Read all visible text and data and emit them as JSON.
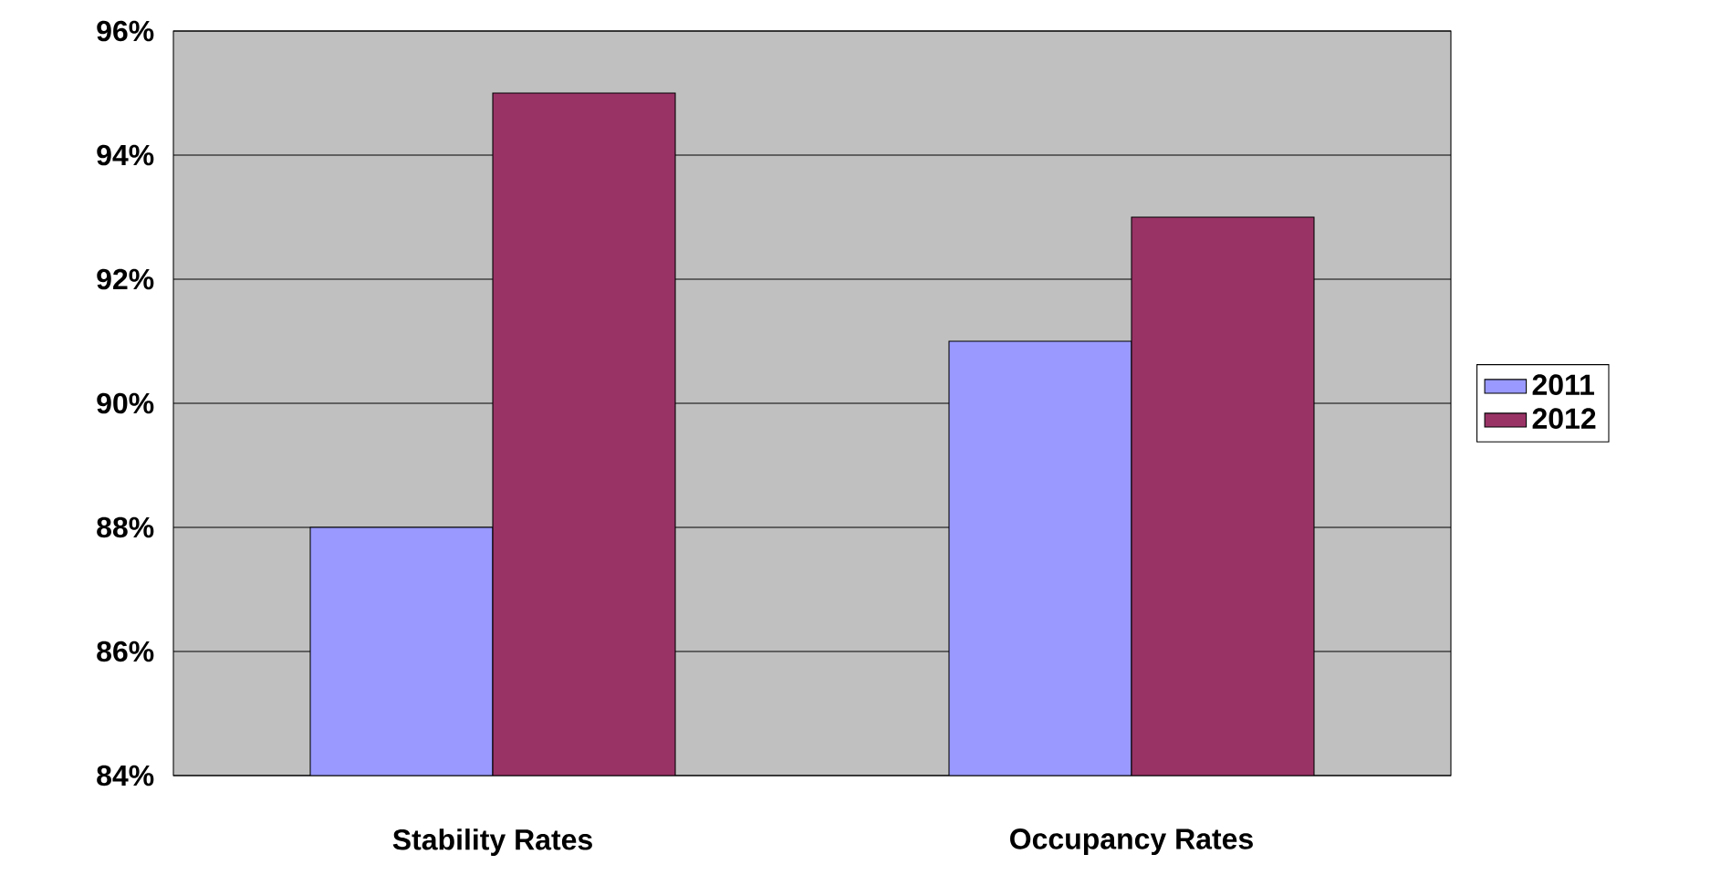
{
  "chart_data": {
    "type": "bar",
    "categories": [
      "Stability Rates",
      "Occupancy Rates"
    ],
    "series": [
      {
        "name": "2011",
        "color": "#9999ff",
        "values": [
          88,
          91
        ]
      },
      {
        "name": "2012",
        "color": "#993366",
        "values": [
          95,
          93
        ]
      }
    ],
    "ylim": [
      84,
      96
    ],
    "yticks": [
      {
        "value": 84,
        "label": "84%"
      },
      {
        "value": 86,
        "label": "86%"
      },
      {
        "value": 88,
        "label": "88%"
      },
      {
        "value": 90,
        "label": "90%"
      },
      {
        "value": 92,
        "label": "92%"
      },
      {
        "value": 94,
        "label": "94%"
      },
      {
        "value": 96,
        "label": "96%"
      }
    ],
    "grid": "y",
    "legend": "right"
  }
}
